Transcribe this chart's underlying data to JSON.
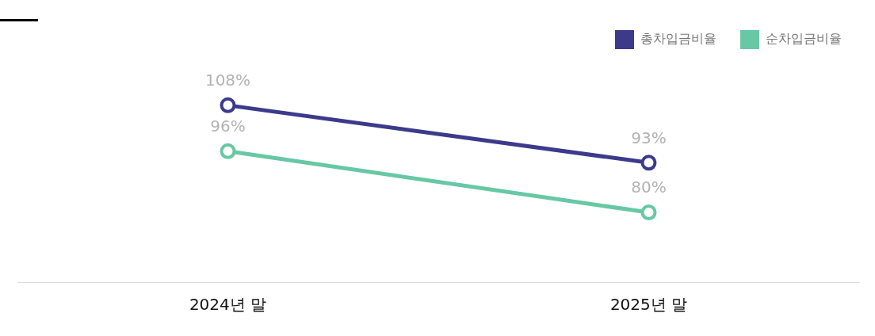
{
  "chart_data": {
    "type": "line",
    "categories": [
      "2024년 말",
      "2025년 말"
    ],
    "series": [
      {
        "name": "총차입금비율",
        "color": "#3d3a8c",
        "values": [
          108,
          93
        ],
        "value_labels": [
          "108%",
          "93%"
        ]
      },
      {
        "name": "순차입금비율",
        "color": "#66c8a4",
        "values": [
          96,
          80
        ],
        "value_labels": [
          "96%",
          "80%"
        ]
      }
    ],
    "legend": "top right",
    "marker": "circle",
    "grid": false
  }
}
